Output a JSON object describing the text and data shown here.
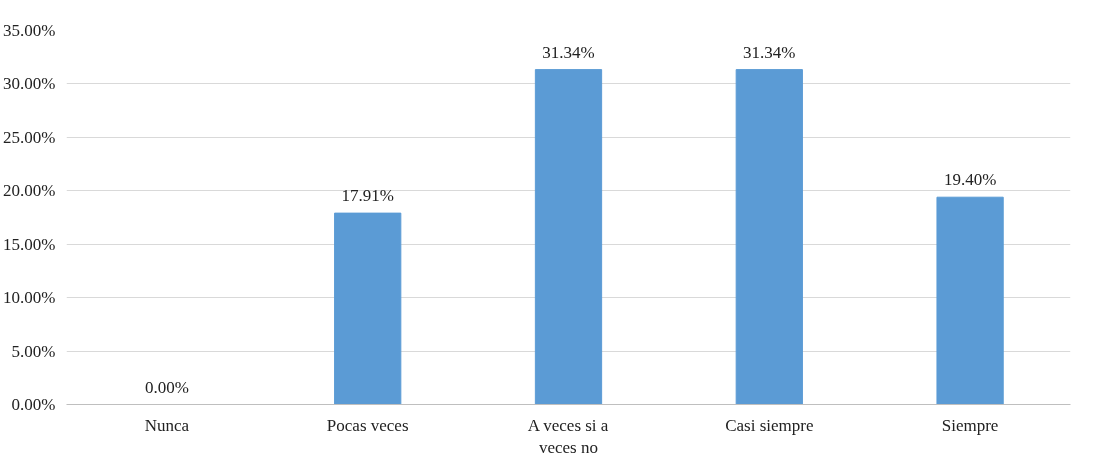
{
  "chart_data": {
    "type": "bar",
    "categories": [
      "Nunca",
      "Pocas veces",
      "A veces si a veces no",
      "Casi siempre",
      "Siempre"
    ],
    "values": [
      0,
      17.91,
      31.34,
      31.34,
      19.4
    ],
    "value_labels": [
      "0.00%",
      "17.91%",
      "31.34%",
      "31.34%",
      "19.40%"
    ],
    "color": "#5b9bd5",
    "ylim": [
      0,
      35
    ],
    "yticks": [
      {
        "value": 0,
        "label": "0.00%"
      },
      {
        "value": 5,
        "label": "5.00%"
      },
      {
        "value": 10,
        "label": "10.00%"
      },
      {
        "value": 15,
        "label": "15.00%"
      },
      {
        "value": 20,
        "label": "20.00%"
      },
      {
        "value": 25,
        "label": "25.00%"
      },
      {
        "value": 30,
        "label": "30.00%"
      },
      {
        "value": 35,
        "label": "35.00%"
      }
    ],
    "grid": "y"
  }
}
